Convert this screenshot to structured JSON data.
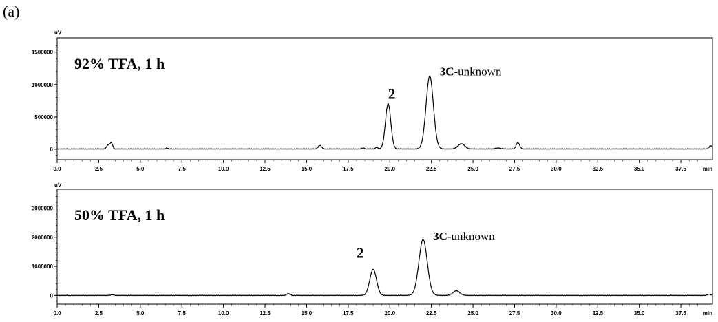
{
  "figure_label": "(a)",
  "chart_data": [
    {
      "type": "line",
      "panel": "top",
      "annotation": "92% TFA, 1 h",
      "y_unit": "uV",
      "x_unit": "min",
      "xlim": [
        0,
        39.4
      ],
      "ylim": [
        -160000,
        1720000
      ],
      "x_ticks": [
        0.0,
        2.5,
        5.0,
        7.5,
        10.0,
        12.5,
        15.0,
        17.5,
        20.0,
        22.5,
        25.0,
        27.5,
        30.0,
        32.5,
        35.0,
        37.5
      ],
      "x_tick_labels": [
        "0.0",
        "2.5",
        "5.0",
        "7.5",
        "10.0",
        "12.5",
        "15.0",
        "17.5",
        "20.0",
        "22.5",
        "25.0",
        "27.5",
        "30.0",
        "32.5",
        "35.0",
        "37.5"
      ],
      "y_ticks": [
        0,
        500000,
        1000000,
        1500000
      ],
      "y_tick_labels": [
        "0",
        "500000",
        "1000000",
        "1500000"
      ],
      "baseline": 5000,
      "peaks": [
        {
          "x": 3.05,
          "height": 60000,
          "width": 0.08
        },
        {
          "x": 3.25,
          "height": 100000,
          "width": 0.08
        },
        {
          "x": 6.6,
          "height": 15000,
          "width": 0.06
        },
        {
          "x": 15.8,
          "height": 55000,
          "width": 0.1
        },
        {
          "x": 18.4,
          "height": 15000,
          "width": 0.08
        },
        {
          "x": 19.2,
          "height": 25000,
          "width": 0.08
        },
        {
          "x": 19.9,
          "height": 700000,
          "width": 0.16
        },
        {
          "x": 22.4,
          "height": 1125000,
          "width": 0.22
        },
        {
          "x": 24.3,
          "height": 80000,
          "width": 0.2
        },
        {
          "x": 26.5,
          "height": 15000,
          "width": 0.15
        },
        {
          "x": 27.7,
          "height": 100000,
          "width": 0.1
        },
        {
          "x": 39.3,
          "height": 50000,
          "width": 0.1
        }
      ],
      "peak_labels": [
        {
          "x": 19.9,
          "y": 780000,
          "bold": "2",
          "rest": ""
        },
        {
          "x": 23.0,
          "y": 1140000,
          "bold": "3C",
          "rest": "-unknown"
        }
      ]
    },
    {
      "type": "line",
      "panel": "bottom",
      "annotation": "50% TFA, 1 h",
      "y_unit": "uV",
      "x_unit": "min",
      "xlim": [
        0,
        39.4
      ],
      "ylim": [
        -300000,
        3650000
      ],
      "x_ticks": [
        0.0,
        2.5,
        5.0,
        7.5,
        10.0,
        12.5,
        15.0,
        17.5,
        20.0,
        22.5,
        25.0,
        27.5,
        30.0,
        32.5,
        35.0,
        37.5
      ],
      "x_tick_labels": [
        "0.0",
        "2.5",
        "5.0",
        "7.5",
        "10.0",
        "12.5",
        "15.0",
        "17.5",
        "20.0",
        "22.5",
        "25.0",
        "27.5",
        "30.0",
        "32.5",
        "35.0",
        "37.5"
      ],
      "y_ticks": [
        0,
        1000000,
        2000000,
        3000000
      ],
      "y_tick_labels": [
        "0",
        "1000000",
        "2000000",
        "3000000"
      ],
      "baseline": 0,
      "peaks": [
        {
          "x": 3.3,
          "height": 20000,
          "width": 0.1
        },
        {
          "x": 13.9,
          "height": 60000,
          "width": 0.1
        },
        {
          "x": 19.0,
          "height": 900000,
          "width": 0.2
        },
        {
          "x": 22.0,
          "height": 1920000,
          "width": 0.25
        },
        {
          "x": 24.0,
          "height": 160000,
          "width": 0.2
        },
        {
          "x": 39.2,
          "height": 40000,
          "width": 0.1
        }
      ],
      "peak_labels": [
        {
          "x": 18.0,
          "y": 1300000,
          "bold": "2",
          "rest": ""
        },
        {
          "x": 22.6,
          "y": 1900000,
          "bold": "3C",
          "rest": "-unknown"
        }
      ]
    }
  ]
}
